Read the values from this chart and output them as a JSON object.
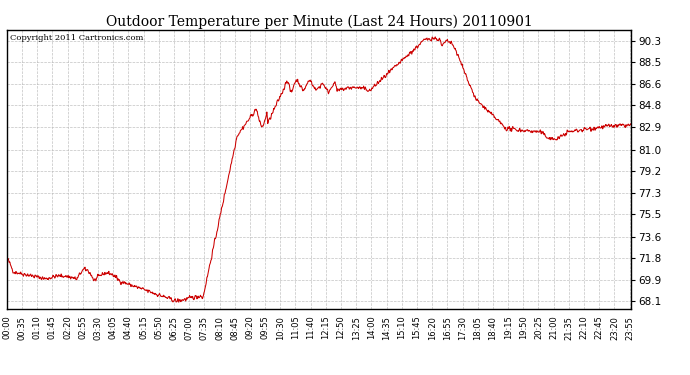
{
  "title": "Outdoor Temperature per Minute (Last 24 Hours) 20110901",
  "copyright": "Copyright 2011 Cartronics.com",
  "line_color": "#cc0000",
  "background_color": "#ffffff",
  "plot_bg_color": "#ffffff",
  "grid_color": "#bbbbbb",
  "yticks": [
    68.1,
    69.9,
    71.8,
    73.6,
    75.5,
    77.3,
    79.2,
    81.0,
    82.9,
    84.8,
    86.6,
    88.5,
    90.3
  ],
  "ylim": [
    67.4,
    91.2
  ],
  "total_minutes": 1440,
  "xtick_interval": 35,
  "xtick_labels": [
    "00:00",
    "00:35",
    "01:10",
    "01:45",
    "02:20",
    "02:55",
    "03:30",
    "04:05",
    "04:40",
    "05:15",
    "05:50",
    "06:25",
    "07:00",
    "07:35",
    "08:10",
    "08:45",
    "09:20",
    "09:55",
    "10:30",
    "11:05",
    "11:40",
    "12:15",
    "12:50",
    "13:25",
    "14:00",
    "14:35",
    "15:10",
    "15:45",
    "16:20",
    "16:55",
    "17:30",
    "18:05",
    "18:40",
    "19:15",
    "19:50",
    "20:25",
    "21:00",
    "21:35",
    "22:10",
    "22:45",
    "23:20",
    "23:55"
  ]
}
